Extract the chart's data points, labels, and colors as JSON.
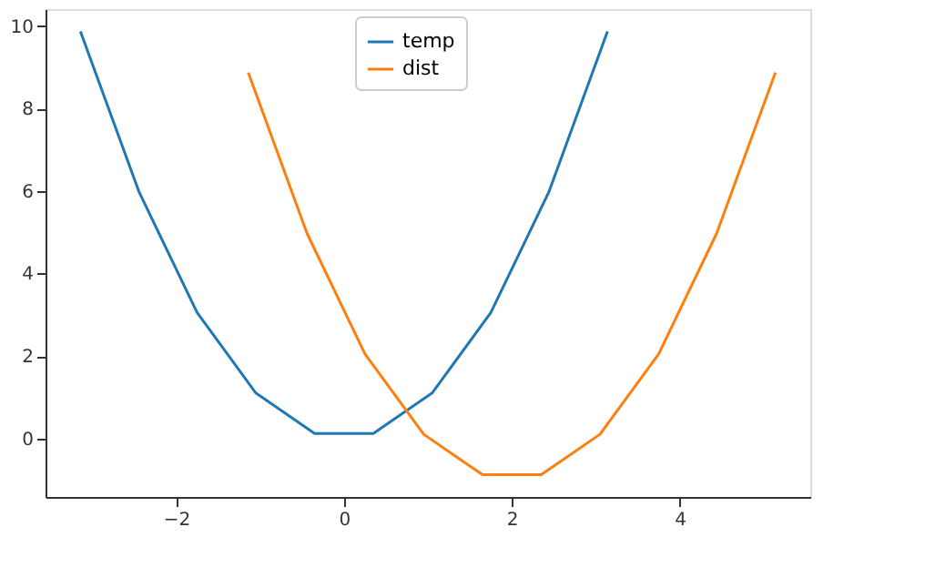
{
  "chart_data": {
    "type": "line",
    "xlim": [
      -3.556,
      5.556
    ],
    "ylim": [
      -1.42,
      10.41
    ],
    "xticks": [
      -2,
      0,
      2,
      4
    ],
    "yticks": [
      0,
      2,
      4,
      6,
      8,
      10
    ],
    "grid": false,
    "legend": "top",
    "marker": "none",
    "line_style": "solid",
    "series": [
      {
        "name": "temp",
        "color": "#1f77b4",
        "x": [
          -3.14,
          -2.44,
          -1.75,
          -1.05,
          -0.35,
          0.35,
          1.05,
          1.75,
          2.44,
          3.14
        ],
        "values": [
          9.87,
          5.97,
          3.05,
          1.1,
          0.12,
          0.12,
          1.1,
          3.05,
          5.97,
          9.87
        ]
      },
      {
        "name": "dist",
        "color": "#ff7f0e",
        "x": [
          -1.14,
          -0.44,
          0.25,
          0.95,
          1.65,
          2.35,
          3.05,
          3.75,
          4.44,
          5.14
        ],
        "values": [
          8.87,
          4.97,
          2.05,
          0.1,
          -0.88,
          -0.88,
          0.1,
          2.05,
          4.97,
          8.87
        ]
      }
    ]
  }
}
